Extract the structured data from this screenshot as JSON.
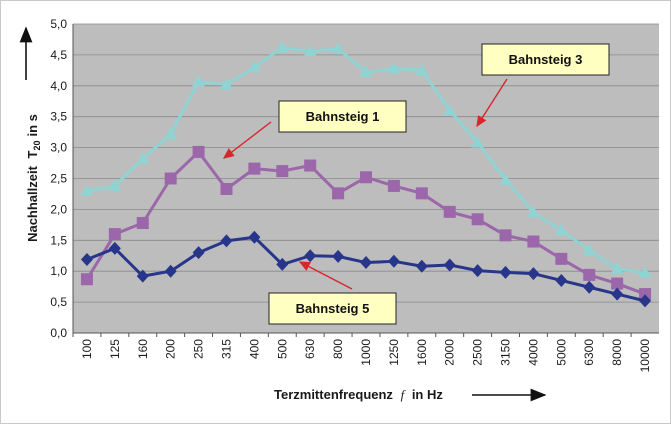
{
  "chart_data": {
    "type": "line",
    "x": [
      "100",
      "125",
      "160",
      "200",
      "250",
      "315",
      "400",
      "500",
      "630",
      "800",
      "1000",
      "1250",
      "1600",
      "2000",
      "2500",
      "3150",
      "4000",
      "5000",
      "6300",
      "8000",
      "10000"
    ],
    "xlabel": "Terzmittenfrequenz",
    "xlabel_symbol": "f",
    "xlabel_unit": "in Hz",
    "ylabel": "Nachhallzeit",
    "ylabel_symbol": "T",
    "ylabel_subscript": "20",
    "ylabel_unit": "in s",
    "ylim": [
      0,
      5
    ],
    "yticks": [
      "0,0",
      "0,5",
      "1,0",
      "1,5",
      "2,0",
      "2,5",
      "3,0",
      "3,5",
      "4,0",
      "4,5",
      "5,0"
    ],
    "grid": true,
    "legend": "none",
    "series": [
      {
        "name": "Bahnsteig 3",
        "marker": "triangle",
        "color": "#8fd3d3",
        "values": [
          2.3,
          2.38,
          2.82,
          3.22,
          4.07,
          4.02,
          4.3,
          4.62,
          4.56,
          4.6,
          4.22,
          4.28,
          4.25,
          3.6,
          3.08,
          2.48,
          1.95,
          1.66,
          1.34,
          1.04,
          0.97
        ]
      },
      {
        "name": "Bahnsteig 1",
        "marker": "square",
        "color": "#9c66aa",
        "values": [
          0.87,
          1.6,
          1.78,
          2.5,
          2.93,
          2.33,
          2.66,
          2.62,
          2.71,
          2.26,
          2.52,
          2.38,
          2.26,
          1.96,
          1.84,
          1.58,
          1.48,
          1.2,
          0.94,
          0.8,
          0.63
        ]
      },
      {
        "name": "Bahnsteig 5",
        "marker": "diamond",
        "color": "#27368a",
        "values": [
          1.19,
          1.37,
          0.92,
          1.0,
          1.3,
          1.49,
          1.55,
          1.11,
          1.25,
          1.24,
          1.14,
          1.16,
          1.08,
          1.1,
          1.01,
          0.98,
          0.96,
          0.85,
          0.74,
          0.63,
          0.52
        ]
      }
    ],
    "annotations": [
      {
        "text": "Bahnsteig 3",
        "series": 0
      },
      {
        "text": "Bahnsteig 1",
        "series": 1
      },
      {
        "text": "Bahnsteig 5",
        "series": 2
      }
    ]
  }
}
